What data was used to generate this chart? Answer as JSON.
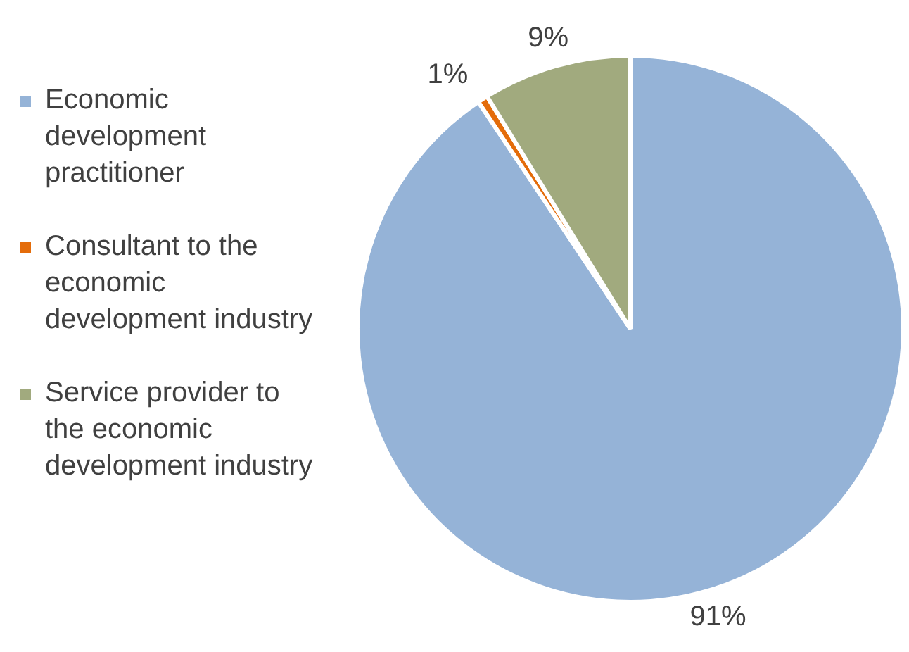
{
  "chart_data": {
    "type": "pie",
    "categories": [
      "Economic development practitioner",
      "Consultant to the economic development industry",
      "Service provider to the economic development industry"
    ],
    "values": [
      90.6,
      0.6,
      8.8
    ],
    "colors": [
      "#95b3d7",
      "#e46c0a",
      "#a1aa7e"
    ],
    "value_labels": [
      "91%",
      "1%",
      "9%"
    ],
    "legend": "left"
  }
}
